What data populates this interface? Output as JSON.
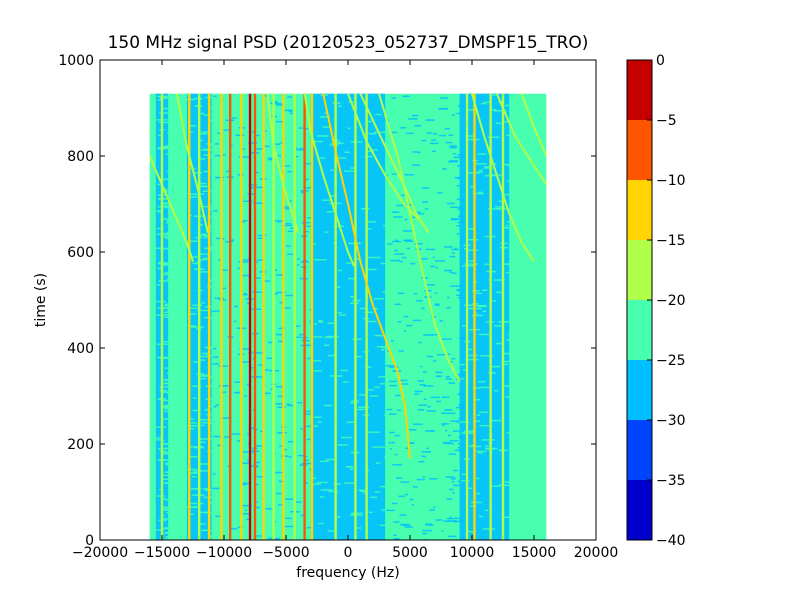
{
  "chart_data": {
    "type": "heatmap",
    "title": "150 MHz signal PSD (20120523_052737_DMSPF15_TRO)",
    "xlabel": "frequency (Hz)",
    "ylabel": "time (s)",
    "xlim": [
      -20000,
      20000
    ],
    "ylim": [
      0,
      1000
    ],
    "x_ticks": [
      -20000,
      -15000,
      -10000,
      -5000,
      0,
      5000,
      10000,
      15000,
      20000
    ],
    "y_ticks": [
      0,
      200,
      400,
      600,
      800,
      1000
    ],
    "x_tick_labels": [
      "−20000",
      "−15000",
      "−10000",
      "−5000",
      "0",
      "5000",
      "10000",
      "15000",
      "20000"
    ],
    "y_tick_labels": [
      "0",
      "200",
      "400",
      "600",
      "800",
      "1000"
    ],
    "data_extent": {
      "x": [
        -16000,
        16000
      ],
      "y": [
        0,
        930
      ]
    },
    "colorbar": {
      "levels": [
        -40,
        -35,
        -30,
        -25,
        -20,
        -15,
        -10,
        -5,
        0
      ],
      "tick_labels": [
        "−40",
        "−35",
        "−30",
        "−25",
        "−20",
        "−15",
        "−10",
        "−5",
        "0"
      ],
      "colors": [
        "#0000cd",
        "#0044ff",
        "#00bfff",
        "#48ffb0",
        "#b0ff48",
        "#ffd400",
        "#ff5500",
        "#c40000"
      ]
    },
    "background_level_color": "#48ffb0",
    "low_level_color": "#00bfff",
    "regions": [
      {
        "x": [
          -15500,
          -14500
        ],
        "level": "low"
      },
      {
        "x": [
          -13000,
          -11000
        ],
        "level": "low"
      },
      {
        "x": [
          -11000,
          -3000
        ],
        "level": "mixed"
      },
      {
        "x": [
          -3000,
          3000
        ],
        "level": "low"
      },
      {
        "x": [
          3000,
          9000
        ],
        "level": "mixed"
      },
      {
        "x": [
          9000,
          13000
        ],
        "level": "low"
      }
    ],
    "vertical_lines": [
      {
        "x": -15000,
        "color": "#b0ff48"
      },
      {
        "x": -12800,
        "color": "#ffd400"
      },
      {
        "x": -12000,
        "color": "#b0ff48"
      },
      {
        "x": -11200,
        "color": "#ffd400"
      },
      {
        "x": -10200,
        "color": "#ffd400"
      },
      {
        "x": -9500,
        "color": "#ff5500"
      },
      {
        "x": -8600,
        "color": "#ffd400"
      },
      {
        "x": -7900,
        "color": "#c40000"
      },
      {
        "x": -7500,
        "color": "#ff5500"
      },
      {
        "x": -6800,
        "color": "#ffd400"
      },
      {
        "x": -6000,
        "color": "#b0ff48"
      },
      {
        "x": -5200,
        "color": "#ffd400"
      },
      {
        "x": -4300,
        "color": "#b0ff48"
      },
      {
        "x": -3500,
        "color": "#ff5500"
      },
      {
        "x": -2900,
        "color": "#ffd400"
      },
      {
        "x": -1000,
        "color": "#b0ff48"
      },
      {
        "x": 600,
        "color": "#b0ff48"
      },
      {
        "x": 1500,
        "color": "#b0ff48"
      },
      {
        "x": 9600,
        "color": "#b0ff48"
      },
      {
        "x": 10200,
        "color": "#ffd400"
      },
      {
        "x": 11500,
        "color": "#b0ff48"
      },
      {
        "x": 12500,
        "color": "#b0ff48"
      }
    ],
    "tracks": [
      {
        "color": "#b0ff48",
        "points": [
          [
            -16000,
            800
          ],
          [
            -15000,
            740
          ],
          [
            -14000,
            680
          ],
          [
            -13000,
            620
          ],
          [
            -12500,
            580
          ]
        ]
      },
      {
        "color": "#b0ff48",
        "points": [
          [
            -13800,
            930
          ],
          [
            -13000,
            820
          ],
          [
            -12000,
            720
          ],
          [
            -11300,
            640
          ]
        ]
      },
      {
        "color": "#b0ff48",
        "points": [
          [
            -6500,
            930
          ],
          [
            -6000,
            820
          ],
          [
            -5000,
            720
          ],
          [
            -4000,
            640
          ]
        ]
      },
      {
        "color": "#b0ff48",
        "points": [
          [
            -3500,
            930
          ],
          [
            -3000,
            850
          ],
          [
            -2000,
            760
          ],
          [
            -1000,
            680
          ],
          [
            0,
            600
          ],
          [
            500,
            570
          ]
        ]
      },
      {
        "color": "#ffd400",
        "points": [
          [
            -2000,
            930
          ],
          [
            -1000,
            810
          ],
          [
            0,
            700
          ],
          [
            1000,
            580
          ],
          [
            2000,
            490
          ],
          [
            3000,
            420
          ],
          [
            4000,
            350
          ],
          [
            4600,
            280
          ],
          [
            5000,
            170
          ]
        ]
      },
      {
        "color": "#b0ff48",
        "points": [
          [
            0,
            930
          ],
          [
            1500,
            830
          ],
          [
            3000,
            760
          ],
          [
            4500,
            700
          ],
          [
            6000,
            660
          ]
        ]
      },
      {
        "color": "#b0ff48",
        "points": [
          [
            1000,
            930
          ],
          [
            3000,
            820
          ],
          [
            4500,
            740
          ],
          [
            5500,
            680
          ],
          [
            6500,
            640
          ]
        ]
      },
      {
        "color": "#b0ff48",
        "points": [
          [
            2500,
            930
          ],
          [
            4000,
            800
          ],
          [
            5000,
            680
          ],
          [
            6000,
            560
          ],
          [
            7000,
            450
          ],
          [
            8000,
            380
          ],
          [
            9000,
            330
          ]
        ]
      },
      {
        "color": "#b0ff48",
        "points": [
          [
            10000,
            930
          ],
          [
            11000,
            840
          ],
          [
            12000,
            760
          ],
          [
            13000,
            680
          ],
          [
            14000,
            620
          ],
          [
            15000,
            580
          ]
        ]
      },
      {
        "color": "#b0ff48",
        "points": [
          [
            12000,
            930
          ],
          [
            13500,
            840
          ],
          [
            15000,
            780
          ],
          [
            16000,
            740
          ]
        ]
      },
      {
        "color": "#b0ff48",
        "points": [
          [
            14000,
            930
          ],
          [
            15000,
            860
          ],
          [
            16000,
            800
          ]
        ]
      }
    ],
    "grid": false
  }
}
